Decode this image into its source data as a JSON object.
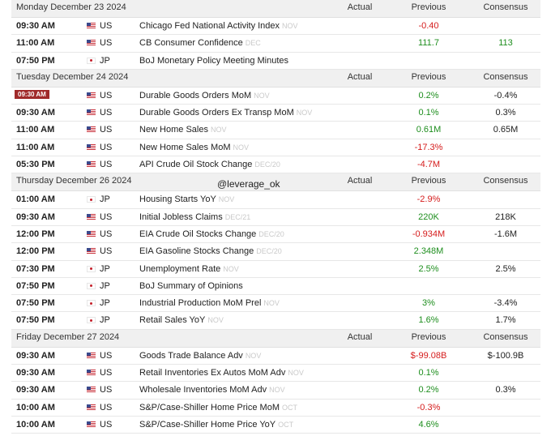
{
  "watermark": "@leverage_ok",
  "columns": {
    "actual": "Actual",
    "previous": "Previous",
    "consensus": "Consensus"
  },
  "days": [
    {
      "label": "Monday December 23 2024",
      "events": [
        {
          "time": "09:30 AM",
          "flag": "us-flag-icon",
          "country": "US",
          "name": "Chicago Fed National Activity Index",
          "period": "NOV",
          "actual": "",
          "previous": "-0.40",
          "previous_tone": "neg",
          "consensus": "",
          "consensus_tone": "neu"
        },
        {
          "time": "11:00 AM",
          "flag": "us-flag-icon",
          "country": "US",
          "name": "CB Consumer Confidence",
          "period": "DEC",
          "actual": "",
          "previous": "111.7",
          "previous_tone": "pos",
          "consensus": "113",
          "consensus_tone": "pos"
        },
        {
          "time": "07:50 PM",
          "flag": "jp-flag-icon",
          "country": "JP",
          "name": "BoJ Monetary Policy Meeting Minutes",
          "period": "",
          "actual": "",
          "previous": "",
          "previous_tone": "neu",
          "consensus": "",
          "consensus_tone": "neu"
        }
      ]
    },
    {
      "label": "Tuesday December 24 2024",
      "events": [
        {
          "time": "09:30 AM",
          "time_highlight": true,
          "flag": "us-flag-icon",
          "country": "US",
          "name": "Durable Goods Orders MoM",
          "period": "NOV",
          "actual": "",
          "previous": "0.2%",
          "previous_tone": "pos",
          "consensus": "-0.4%",
          "consensus_tone": "neu"
        },
        {
          "time": "09:30 AM",
          "flag": "us-flag-icon",
          "country": "US",
          "name": "Durable Goods Orders Ex Transp MoM",
          "period": "NOV",
          "actual": "",
          "previous": "0.1%",
          "previous_tone": "pos",
          "consensus": "0.3%",
          "consensus_tone": "neu"
        },
        {
          "time": "11:00 AM",
          "flag": "us-flag-icon",
          "country": "US",
          "name": "New Home Sales",
          "period": "NOV",
          "actual": "",
          "previous": "0.61M",
          "previous_tone": "pos",
          "consensus": "0.65M",
          "consensus_tone": "neu"
        },
        {
          "time": "11:00 AM",
          "flag": "us-flag-icon",
          "country": "US",
          "name": "New Home Sales MoM",
          "period": "NOV",
          "actual": "",
          "previous": "-17.3%",
          "previous_tone": "neg",
          "consensus": "",
          "consensus_tone": "neu"
        },
        {
          "time": "05:30 PM",
          "flag": "us-flag-icon",
          "country": "US",
          "name": "API Crude Oil Stock Change",
          "period": "DEC/20",
          "actual": "",
          "previous": "-4.7M",
          "previous_tone": "neg",
          "consensus": "",
          "consensus_tone": "neu"
        }
      ]
    },
    {
      "label": "Thursday December 26 2024",
      "events": [
        {
          "time": "01:00 AM",
          "flag": "jp-flag-icon",
          "country": "JP",
          "name": "Housing Starts YoY",
          "period": "NOV",
          "actual": "",
          "previous": "-2.9%",
          "previous_tone": "neg",
          "consensus": "",
          "consensus_tone": "neu"
        },
        {
          "time": "09:30 AM",
          "flag": "us-flag-icon",
          "country": "US",
          "name": "Initial Jobless Claims",
          "period": "DEC/21",
          "actual": "",
          "previous": "220K",
          "previous_tone": "pos",
          "consensus": "218K",
          "consensus_tone": "neu"
        },
        {
          "time": "12:00 PM",
          "flag": "us-flag-icon",
          "country": "US",
          "name": "EIA Crude Oil Stocks Change",
          "period": "DEC/20",
          "actual": "",
          "previous": "-0.934M",
          "previous_tone": "neg",
          "consensus": "-1.6M",
          "consensus_tone": "neu"
        },
        {
          "time": "12:00 PM",
          "flag": "us-flag-icon",
          "country": "US",
          "name": "EIA Gasoline Stocks Change",
          "period": "DEC/20",
          "actual": "",
          "previous": "2.348M",
          "previous_tone": "pos",
          "consensus": "",
          "consensus_tone": "neu"
        },
        {
          "time": "07:30 PM",
          "flag": "jp-flag-icon",
          "country": "JP",
          "name": "Unemployment Rate",
          "period": "NOV",
          "actual": "",
          "previous": "2.5%",
          "previous_tone": "pos",
          "consensus": "2.5%",
          "consensus_tone": "neu"
        },
        {
          "time": "07:50 PM",
          "flag": "jp-flag-icon",
          "country": "JP",
          "name": "BoJ Summary of Opinions",
          "period": "",
          "actual": "",
          "previous": "",
          "previous_tone": "neu",
          "consensus": "",
          "consensus_tone": "neu"
        },
        {
          "time": "07:50 PM",
          "flag": "jp-flag-icon",
          "country": "JP",
          "name": "Industrial Production MoM Prel",
          "period": "NOV",
          "actual": "",
          "previous": "3%",
          "previous_tone": "pos",
          "consensus": "-3.4%",
          "consensus_tone": "neu"
        },
        {
          "time": "07:50 PM",
          "flag": "jp-flag-icon",
          "country": "JP",
          "name": "Retail Sales YoY",
          "period": "NOV",
          "actual": "",
          "previous": "1.6%",
          "previous_tone": "pos",
          "consensus": "1.7%",
          "consensus_tone": "neu"
        }
      ]
    },
    {
      "label": "Friday December 27 2024",
      "events": [
        {
          "time": "09:30 AM",
          "flag": "us-flag-icon",
          "country": "US",
          "name": "Goods Trade Balance Adv",
          "period": "NOV",
          "actual": "",
          "previous": "$-99.08B",
          "previous_tone": "neg",
          "consensus": "$-100.9B",
          "consensus_tone": "neu"
        },
        {
          "time": "09:30 AM",
          "flag": "us-flag-icon",
          "country": "US",
          "name": "Retail Inventories Ex Autos MoM Adv",
          "period": "NOV",
          "actual": "",
          "previous": "0.1%",
          "previous_tone": "pos",
          "consensus": "",
          "consensus_tone": "neu"
        },
        {
          "time": "09:30 AM",
          "flag": "us-flag-icon",
          "country": "US",
          "name": "Wholesale Inventories MoM Adv",
          "period": "NOV",
          "actual": "",
          "previous": "0.2%",
          "previous_tone": "pos",
          "consensus": "0.3%",
          "consensus_tone": "neu"
        },
        {
          "time": "10:00 AM",
          "flag": "us-flag-icon",
          "country": "US",
          "name": "S&P/Case-Shiller Home Price MoM",
          "period": "OCT",
          "actual": "",
          "previous": "-0.3%",
          "previous_tone": "neg",
          "consensus": "",
          "consensus_tone": "neu"
        },
        {
          "time": "10:00 AM",
          "flag": "us-flag-icon",
          "country": "US",
          "name": "S&P/Case-Shiller Home Price YoY",
          "period": "OCT",
          "actual": "",
          "previous": "4.6%",
          "previous_tone": "pos",
          "consensus": "",
          "consensus_tone": "neu"
        }
      ]
    }
  ]
}
